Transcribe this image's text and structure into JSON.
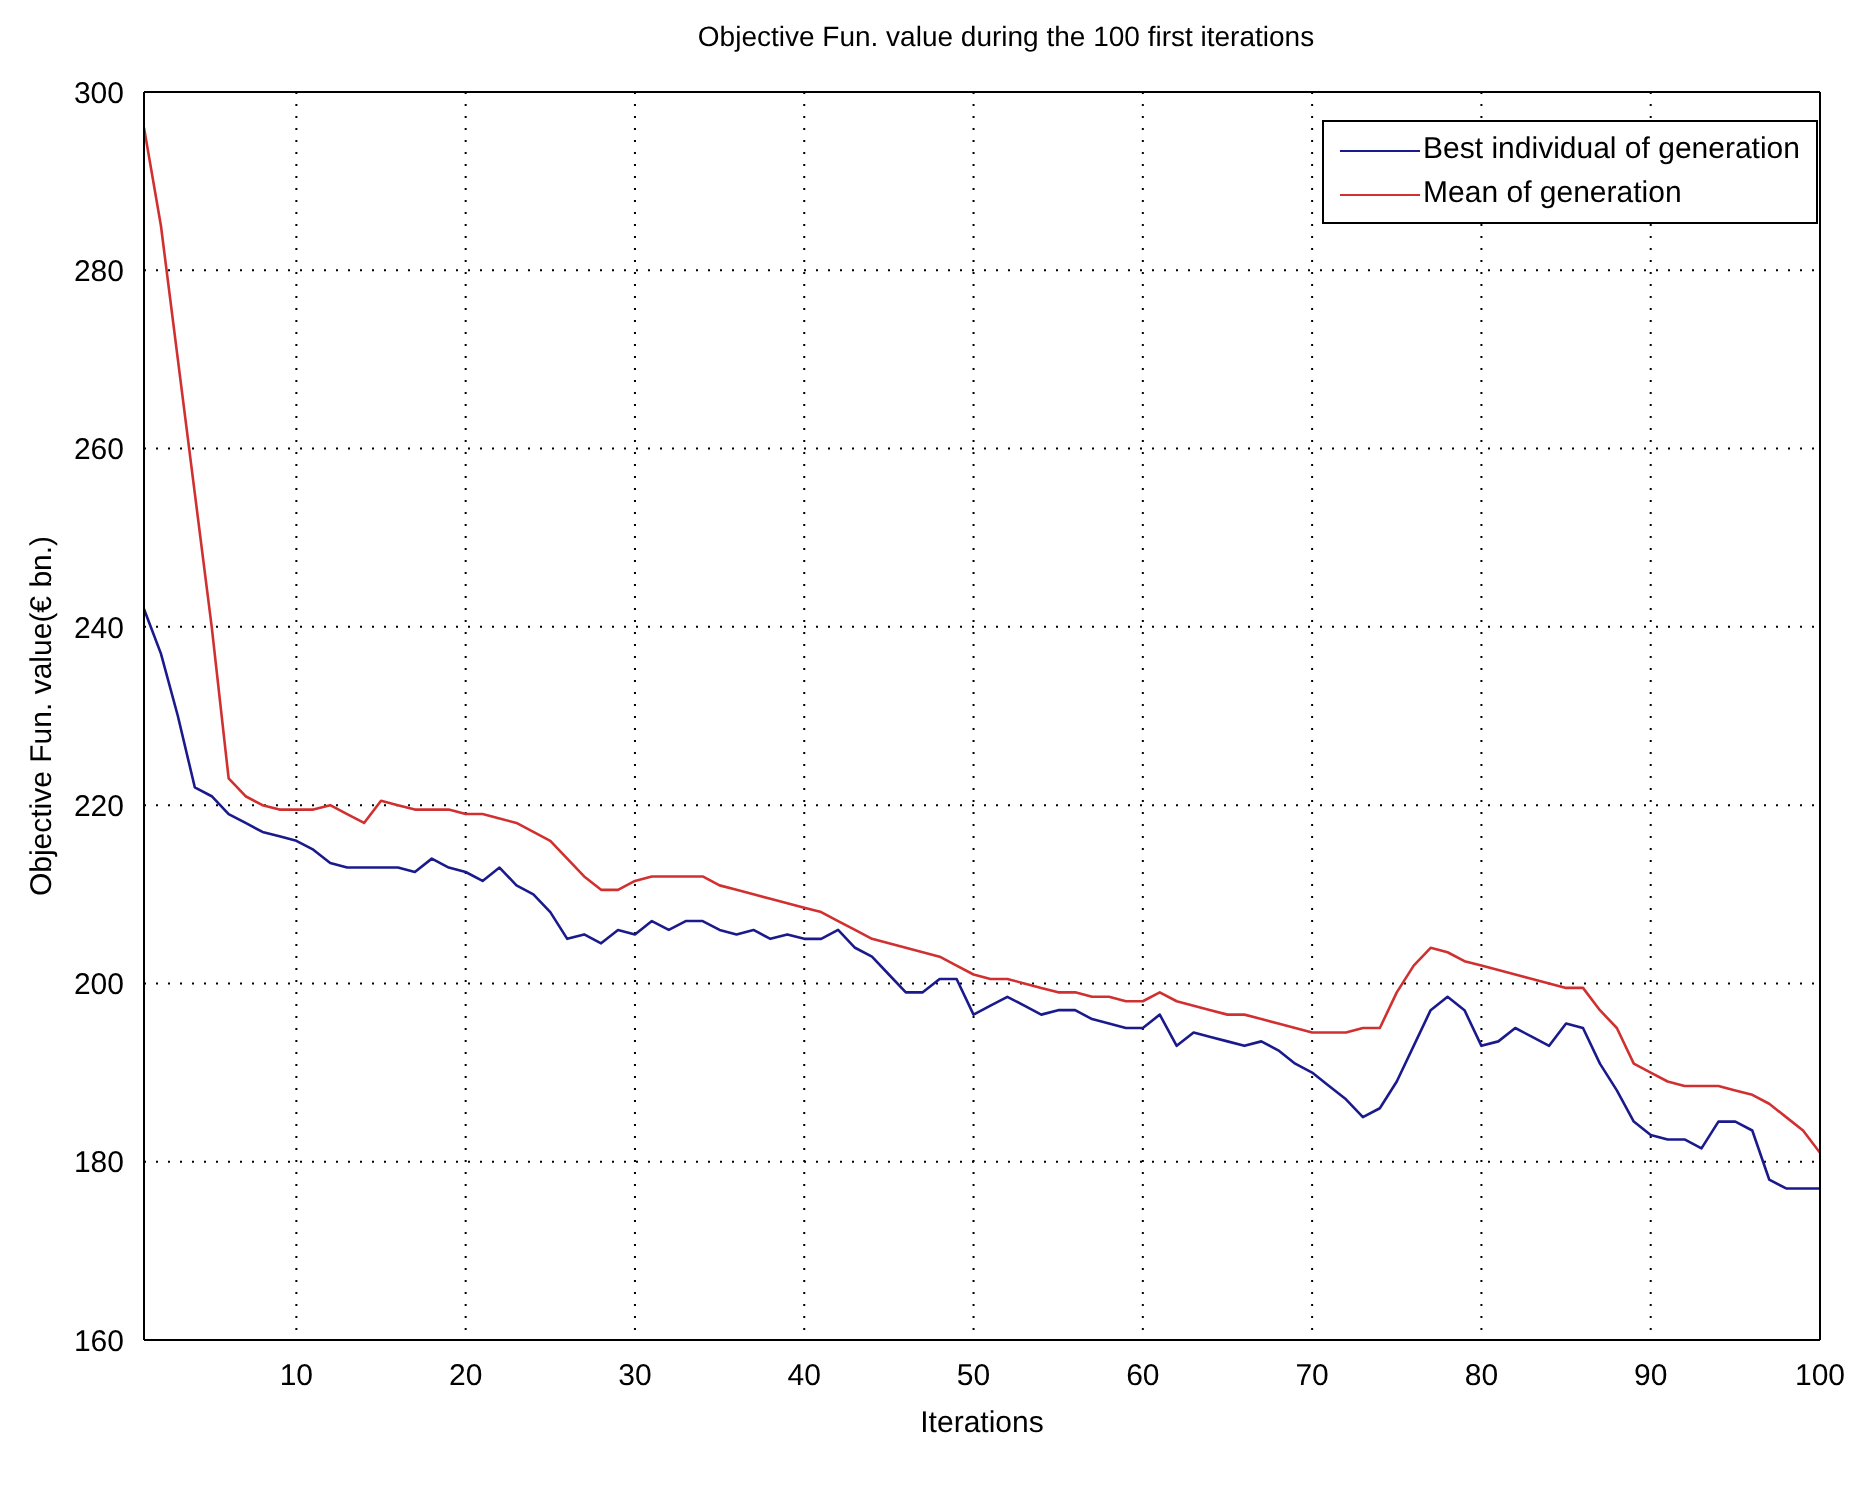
{
  "chart_data": {
    "type": "line",
    "title": "Objective Fun. value during the 100 first iterations",
    "xlabel": "Iterations",
    "ylabel": "Objective Fun. value(€ bn.)",
    "x": [
      1,
      2,
      3,
      4,
      5,
      6,
      7,
      8,
      9,
      10,
      11,
      12,
      13,
      14,
      15,
      16,
      17,
      18,
      19,
      20,
      21,
      22,
      23,
      24,
      25,
      26,
      27,
      28,
      29,
      30,
      31,
      32,
      33,
      34,
      35,
      36,
      37,
      38,
      39,
      40,
      41,
      42,
      43,
      44,
      45,
      46,
      47,
      48,
      49,
      50,
      51,
      52,
      53,
      54,
      55,
      56,
      57,
      58,
      59,
      60,
      61,
      62,
      63,
      64,
      65,
      66,
      67,
      68,
      69,
      70,
      71,
      72,
      73,
      74,
      75,
      76,
      77,
      78,
      79,
      80,
      81,
      82,
      83,
      84,
      85,
      86,
      87,
      88,
      89,
      90,
      91,
      92,
      93,
      94,
      95,
      96,
      97,
      98,
      99,
      100
    ],
    "series": [
      {
        "name": "Best individual of generation",
        "color": "#1a1a8c",
        "values": [
          242,
          237,
          230,
          222,
          221,
          219,
          218,
          217,
          216.5,
          216,
          215,
          213.5,
          213,
          213,
          213,
          213,
          212.5,
          214,
          213,
          212.5,
          211.5,
          213,
          211,
          210,
          208,
          205,
          205.5,
          204.5,
          206,
          205.5,
          207,
          206,
          207,
          207,
          206,
          205.5,
          206,
          205,
          205.5,
          205,
          205,
          206,
          204,
          203,
          201,
          199,
          199,
          200.5,
          200.5,
          196.5,
          197.5,
          198.5,
          197.5,
          196.5,
          197,
          197,
          196,
          195.5,
          195,
          195,
          196.5,
          193,
          194.5,
          194,
          193.5,
          193,
          193.5,
          192.5,
          191,
          190,
          188.5,
          187,
          185,
          186,
          189,
          193,
          197,
          198.5,
          197,
          193,
          193.5,
          195,
          194,
          193,
          195.5,
          195,
          191,
          188,
          184.5,
          183,
          182.5,
          182.5,
          181.5,
          184.5,
          184.5,
          183.5,
          178,
          177,
          177,
          177
        ]
      },
      {
        "name": "Mean of generation",
        "color": "#d03030",
        "values": [
          296,
          285,
          270,
          255,
          240,
          223,
          221,
          220,
          219.5,
          219.5,
          219.5,
          220,
          219,
          218,
          220.5,
          220,
          219.5,
          219.5,
          219.5,
          219,
          219,
          218.5,
          218,
          217,
          216,
          214,
          212,
          210.5,
          210.5,
          211.5,
          212,
          212,
          212,
          212,
          211,
          210.5,
          210,
          209.5,
          209,
          208.5,
          208,
          207,
          206,
          205,
          204.5,
          204,
          203.5,
          203,
          202,
          201,
          200.5,
          200.5,
          200,
          199.5,
          199,
          199,
          198.5,
          198.5,
          198,
          198,
          199,
          198,
          197.5,
          197,
          196.5,
          196.5,
          196,
          195.5,
          195,
          194.5,
          194.5,
          194.5,
          195,
          195,
          199,
          202,
          204,
          203.5,
          202.5,
          202,
          201.5,
          201,
          200.5,
          200,
          199.5,
          199.5,
          197,
          195,
          191,
          190,
          189,
          188.5,
          188.5,
          188.5,
          188,
          187.5,
          186.5,
          185,
          183.5,
          181
        ]
      }
    ],
    "xlim": [
      1,
      100
    ],
    "xticks": [
      10,
      20,
      30,
      40,
      50,
      60,
      70,
      80,
      90,
      100
    ],
    "ylim": [
      160,
      300
    ],
    "yticks": [
      160,
      180,
      200,
      220,
      240,
      260,
      280,
      300
    ],
    "grid": true,
    "legend": "top right",
    "marker": "none",
    "line_style": "solid"
  }
}
